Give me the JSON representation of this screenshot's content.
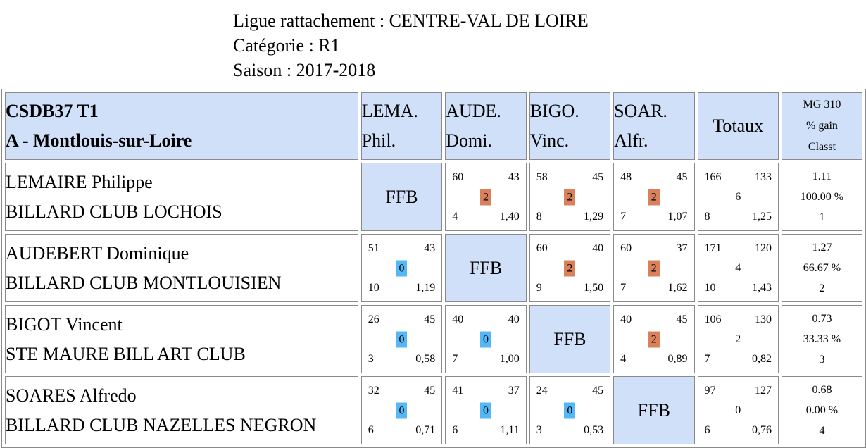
{
  "header": {
    "ligue": "Ligue rattachement : CENTRE-VAL DE LOIRE",
    "categorie": "Catégorie : R1",
    "saison": "Saison : 2017-2018"
  },
  "table": {
    "title_line1": "CSDB37 T1",
    "title_line2": "A - Montlouis-sur-Loire",
    "columns": [
      {
        "line1": "LEMA.",
        "line2": "Phil."
      },
      {
        "line1": "AUDE.",
        "line2": "Domi."
      },
      {
        "line1": "BIGO.",
        "line2": "Vinc."
      },
      {
        "line1": "SOAR.",
        "line2": "Alfr."
      }
    ],
    "totals_label": "Totaux",
    "mg_header": {
      "line1": "MG 310",
      "line2": "% gain",
      "line3": "Classt"
    },
    "ffb_label": "FFB",
    "rows": [
      {
        "name": "LEMAIRE Philippe",
        "club": "BILLARD CLUB LOCHOIS",
        "results": [
          null,
          {
            "points": "60",
            "distance": "43",
            "match_points": "2",
            "innings": "4",
            "average": "1,40",
            "outcome": "win"
          },
          {
            "points": "58",
            "distance": "45",
            "match_points": "2",
            "innings": "8",
            "average": "1,29",
            "outcome": "win"
          },
          {
            "points": "48",
            "distance": "45",
            "match_points": "2",
            "innings": "7",
            "average": "1,07",
            "outcome": "win"
          }
        ],
        "totals": {
          "points": "166",
          "distance": "133",
          "match_points": "6",
          "innings": "8",
          "average": "1,25"
        },
        "mg": "1.11",
        "pct": "100.00 %",
        "rank": "1"
      },
      {
        "name": "AUDEBERT Dominique",
        "club": "BILLARD CLUB MONTLOUISIEN",
        "results": [
          {
            "points": "51",
            "distance": "43",
            "match_points": "0",
            "innings": "10",
            "average": "1,19",
            "outcome": "loss"
          },
          null,
          {
            "points": "60",
            "distance": "40",
            "match_points": "2",
            "innings": "9",
            "average": "1,50",
            "outcome": "win"
          },
          {
            "points": "60",
            "distance": "37",
            "match_points": "2",
            "innings": "7",
            "average": "1,62",
            "outcome": "win"
          }
        ],
        "totals": {
          "points": "171",
          "distance": "120",
          "match_points": "4",
          "innings": "10",
          "average": "1,43"
        },
        "mg": "1.27",
        "pct": "66.67 %",
        "rank": "2"
      },
      {
        "name": "BIGOT Vincent",
        "club": "STE MAURE BILL ART CLUB",
        "results": [
          {
            "points": "26",
            "distance": "45",
            "match_points": "0",
            "innings": "3",
            "average": "0,58",
            "outcome": "loss"
          },
          {
            "points": "40",
            "distance": "40",
            "match_points": "0",
            "innings": "7",
            "average": "1,00",
            "outcome": "loss"
          },
          null,
          {
            "points": "40",
            "distance": "45",
            "match_points": "2",
            "innings": "4",
            "average": "0,89",
            "outcome": "win"
          }
        ],
        "totals": {
          "points": "106",
          "distance": "130",
          "match_points": "2",
          "innings": "7",
          "average": "0,82"
        },
        "mg": "0.73",
        "pct": "33.33 %",
        "rank": "3"
      },
      {
        "name": "SOARES Alfredo",
        "club": "BILLARD CLUB NAZELLES NEGRON",
        "results": [
          {
            "points": "32",
            "distance": "45",
            "match_points": "0",
            "innings": "6",
            "average": "0,71",
            "outcome": "loss"
          },
          {
            "points": "41",
            "distance": "37",
            "match_points": "0",
            "innings": "6",
            "average": "1,11",
            "outcome": "loss"
          },
          {
            "points": "24",
            "distance": "45",
            "match_points": "0",
            "innings": "3",
            "average": "0,53",
            "outcome": "loss"
          },
          null
        ],
        "totals": {
          "points": "97",
          "distance": "127",
          "match_points": "0",
          "innings": "6",
          "average": "0,76"
        },
        "mg": "0.68",
        "pct": "0.00 %",
        "rank": "4"
      }
    ]
  },
  "colors": {
    "header_bg": "#cfe0f8",
    "win_badge": "#d8815c",
    "loss_badge": "#55b7f3",
    "border": "#8a8a8a"
  }
}
